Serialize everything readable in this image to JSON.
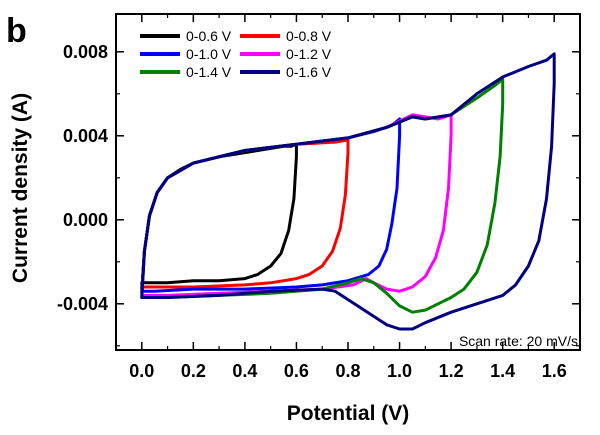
{
  "chart_data": {
    "type": "line",
    "panel_label": "b",
    "xlabel": "Potential (V)",
    "ylabel": "Current density (A)",
    "xlim": [
      -0.1,
      1.7
    ],
    "ylim": [
      -0.0062,
      0.0098
    ],
    "xticks": [
      0.0,
      0.2,
      0.4,
      0.6,
      0.8,
      1.0,
      1.2,
      1.4,
      1.6
    ],
    "xtick_labels": [
      "0.0",
      "0.2",
      "0.4",
      "0.6",
      "0.8",
      "1.0",
      "1.2",
      "1.4",
      "1.6"
    ],
    "yticks": [
      -0.004,
      0.0,
      0.004,
      0.008
    ],
    "ytick_labels": [
      "-0.004",
      "0.000",
      "0.004",
      "0.008"
    ],
    "annotation": "Scan rate: 20 mV/s",
    "legend_position": "top-left",
    "series": [
      {
        "name": "0-0.6 V",
        "color": "#000000",
        "x": [
          0.0,
          0.01,
          0.03,
          0.06,
          0.1,
          0.15,
          0.2,
          0.3,
          0.4,
          0.5,
          0.55,
          0.58,
          0.6,
          0.6,
          0.59,
          0.57,
          0.54,
          0.5,
          0.45,
          0.4,
          0.3,
          0.2,
          0.1,
          0.05,
          0.0,
          0.0
        ],
        "y": [
          -0.0033,
          -0.0015,
          0.0002,
          0.0013,
          0.002,
          0.0024,
          0.0027,
          0.003,
          0.0032,
          0.0034,
          0.0035,
          0.0035,
          0.0036,
          0.003,
          0.001,
          -0.0005,
          -0.0016,
          -0.0022,
          -0.0026,
          -0.0028,
          -0.0029,
          -0.0029,
          -0.003,
          -0.003,
          -0.003,
          -0.0033
        ]
      },
      {
        "name": "0-0.8 V",
        "color": "#ff0000",
        "x": [
          0.0,
          0.01,
          0.03,
          0.06,
          0.1,
          0.2,
          0.4,
          0.6,
          0.75,
          0.8,
          0.8,
          0.79,
          0.77,
          0.74,
          0.7,
          0.65,
          0.6,
          0.5,
          0.4,
          0.2,
          0.05,
          0.0,
          0.0
        ],
        "y": [
          -0.0034,
          -0.0015,
          0.0002,
          0.0013,
          0.002,
          0.0027,
          0.0033,
          0.0036,
          0.0037,
          0.0038,
          0.0032,
          0.0012,
          -0.0004,
          -0.0015,
          -0.0022,
          -0.0026,
          -0.0028,
          -0.003,
          -0.0031,
          -0.0032,
          -0.0032,
          -0.0032,
          -0.0034
        ]
      },
      {
        "name": "0-1.0 V",
        "color": "#0000ff",
        "x": [
          0.0,
          0.01,
          0.03,
          0.06,
          0.1,
          0.2,
          0.4,
          0.6,
          0.8,
          0.9,
          0.97,
          1.0,
          1.0,
          0.99,
          0.97,
          0.95,
          0.92,
          0.88,
          0.8,
          0.7,
          0.6,
          0.4,
          0.2,
          0.05,
          0.0,
          0.0
        ],
        "y": [
          -0.0035,
          -0.0015,
          0.0002,
          0.0013,
          0.002,
          0.0027,
          0.0033,
          0.0036,
          0.0039,
          0.0042,
          0.0045,
          0.0048,
          0.004,
          0.0015,
          -0.0002,
          -0.0014,
          -0.0022,
          -0.0026,
          -0.0029,
          -0.0031,
          -0.0032,
          -0.0033,
          -0.0033,
          -0.0034,
          -0.0034,
          -0.0035
        ]
      },
      {
        "name": "0-1.2 V",
        "color": "#ff00ff",
        "x": [
          0.0,
          0.01,
          0.03,
          0.06,
          0.1,
          0.2,
          0.4,
          0.6,
          0.8,
          0.95,
          1.05,
          1.1,
          1.15,
          1.2,
          1.2,
          1.19,
          1.17,
          1.14,
          1.1,
          1.05,
          1.0,
          0.95,
          0.9,
          0.87,
          0.82,
          0.7,
          0.5,
          0.3,
          0.1,
          0.0,
          0.0
        ],
        "y": [
          -0.0036,
          -0.0015,
          0.0002,
          0.0013,
          0.002,
          0.0027,
          0.0033,
          0.0036,
          0.0039,
          0.0044,
          0.005,
          0.0049,
          0.0048,
          0.005,
          0.004,
          0.0015,
          -0.0005,
          -0.0018,
          -0.0027,
          -0.0032,
          -0.0034,
          -0.0033,
          -0.003,
          -0.0028,
          -0.0031,
          -0.0033,
          -0.0034,
          -0.0035,
          -0.0036,
          -0.0036,
          -0.0036
        ]
      },
      {
        "name": "0-1.4 V",
        "color": "#008000",
        "x": [
          0.0,
          0.01,
          0.03,
          0.06,
          0.1,
          0.2,
          0.4,
          0.6,
          0.8,
          0.95,
          1.05,
          1.1,
          1.2,
          1.3,
          1.37,
          1.4,
          1.4,
          1.39,
          1.37,
          1.34,
          1.3,
          1.25,
          1.2,
          1.15,
          1.1,
          1.05,
          1.0,
          0.95,
          0.9,
          0.85,
          0.8,
          0.7,
          0.5,
          0.3,
          0.1,
          0.0,
          0.0
        ],
        "y": [
          -0.0037,
          -0.0015,
          0.0002,
          0.0013,
          0.002,
          0.0027,
          0.0033,
          0.0036,
          0.0039,
          0.0044,
          0.0049,
          0.0048,
          0.005,
          0.0058,
          0.0064,
          0.0067,
          0.0055,
          0.003,
          0.0008,
          -0.0012,
          -0.0025,
          -0.0033,
          -0.0037,
          -0.004,
          -0.0043,
          -0.0044,
          -0.0041,
          -0.0035,
          -0.003,
          -0.0028,
          -0.003,
          -0.0033,
          -0.0035,
          -0.0036,
          -0.0037,
          -0.0037,
          -0.0037
        ]
      },
      {
        "name": "0-1.6 V",
        "color": "#000080",
        "x": [
          0.0,
          0.01,
          0.03,
          0.06,
          0.1,
          0.2,
          0.4,
          0.6,
          0.8,
          0.95,
          1.05,
          1.1,
          1.2,
          1.3,
          1.4,
          1.5,
          1.57,
          1.6,
          1.6,
          1.59,
          1.57,
          1.54,
          1.5,
          1.45,
          1.4,
          1.3,
          1.2,
          1.1,
          1.05,
          1.0,
          0.95,
          0.9,
          0.85,
          0.8,
          0.75,
          0.7,
          0.5,
          0.3,
          0.1,
          0.0,
          0.0
        ],
        "y": [
          -0.0037,
          -0.0015,
          0.0002,
          0.0013,
          0.002,
          0.0027,
          0.0033,
          0.0036,
          0.0039,
          0.0044,
          0.0049,
          0.0048,
          0.005,
          0.006,
          0.0068,
          0.0073,
          0.0076,
          0.0079,
          0.0065,
          0.0035,
          0.001,
          -0.001,
          -0.0022,
          -0.0031,
          -0.0036,
          -0.004,
          -0.0044,
          -0.0049,
          -0.0052,
          -0.0052,
          -0.005,
          -0.0046,
          -0.0042,
          -0.0038,
          -0.0034,
          -0.0033,
          -0.0034,
          -0.0036,
          -0.0037,
          -0.0037,
          -0.0037
        ]
      }
    ]
  }
}
